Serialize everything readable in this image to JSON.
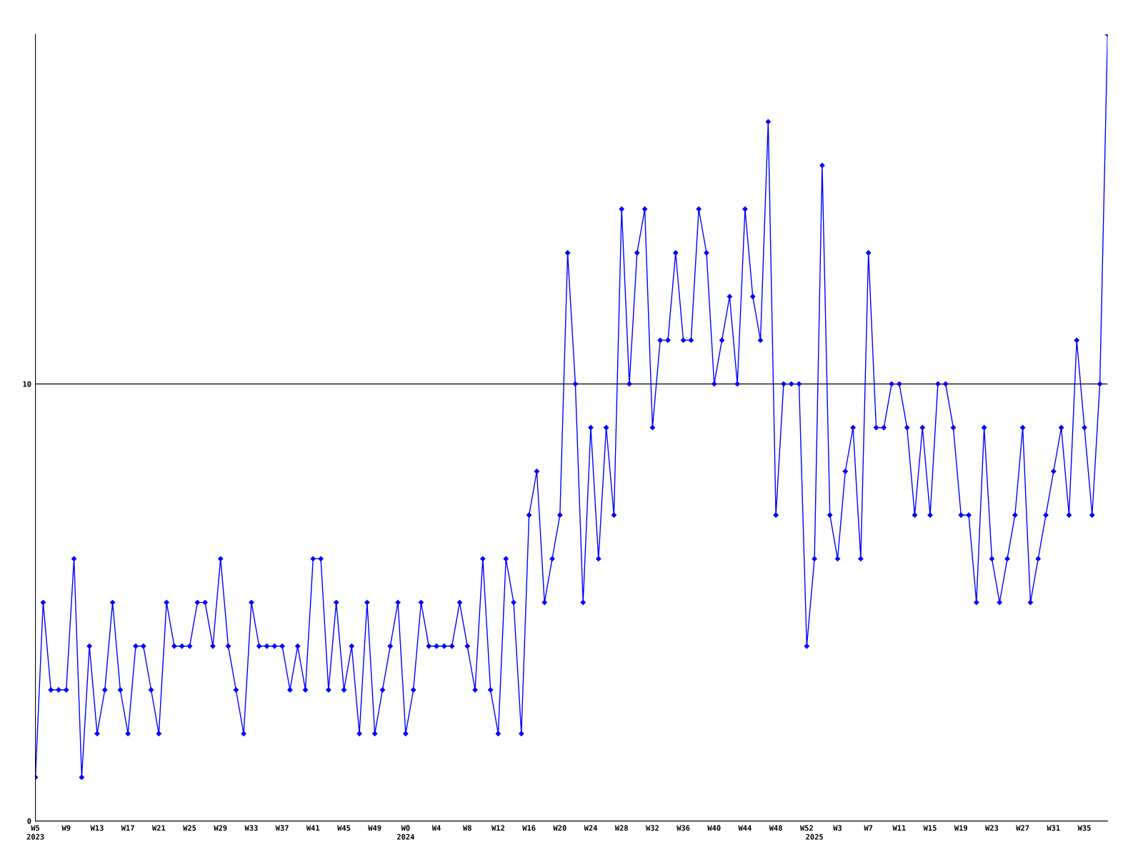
{
  "chart_data": {
    "type": "line",
    "categories": [
      "W5\n2023",
      null,
      null,
      null,
      "W9",
      null,
      null,
      null,
      "W13",
      null,
      null,
      null,
      "W17",
      null,
      null,
      null,
      "W21",
      null,
      null,
      null,
      "W25",
      null,
      null,
      null,
      "W29",
      null,
      null,
      null,
      "W33",
      null,
      null,
      null,
      "W37",
      null,
      null,
      null,
      "W41",
      null,
      null,
      null,
      "W45",
      null,
      null,
      null,
      "W49",
      null,
      null,
      null,
      "W0\n2024",
      null,
      null,
      null,
      "W4",
      null,
      null,
      null,
      "W8",
      null,
      null,
      null,
      "W12",
      null,
      null,
      null,
      "W16",
      null,
      null,
      null,
      "W20",
      null,
      null,
      null,
      "W24",
      null,
      null,
      null,
      "W28",
      null,
      null,
      null,
      "W32",
      null,
      null,
      null,
      "W36",
      null,
      null,
      null,
      "W40",
      null,
      null,
      null,
      "W44",
      null,
      null,
      null,
      "W48",
      null,
      null,
      null,
      "W52",
      "\n2025",
      null,
      null,
      "W3",
      null,
      null,
      null,
      "W7",
      null,
      null,
      null,
      "W11",
      null,
      null,
      null,
      "W15",
      null,
      null,
      null,
      "W19",
      null,
      null,
      null,
      "W23",
      null,
      null,
      null,
      "W27",
      null,
      null,
      null,
      "W31",
      null,
      null,
      null,
      "W35",
      null,
      null,
      null
    ],
    "series": [
      {
        "color": "#0000ff",
        "values": [
          1,
          5,
          3,
          3,
          3,
          6,
          1,
          4,
          2,
          3,
          5,
          3,
          2,
          4,
          4,
          3,
          2,
          5,
          4,
          4,
          4,
          5,
          5,
          4,
          6,
          4,
          3,
          2,
          5,
          4,
          4,
          4,
          4,
          3,
          4,
          3,
          6,
          6,
          3,
          5,
          3,
          4,
          2,
          5,
          2,
          3,
          4,
          5,
          2,
          3,
          5,
          4,
          4,
          4,
          4,
          5,
          4,
          3,
          6,
          3,
          2,
          6,
          5,
          2,
          7,
          8,
          5,
          6,
          7,
          13,
          10,
          5,
          9,
          6,
          9,
          7,
          14,
          10,
          13,
          14,
          9,
          11,
          11,
          13,
          11,
          11,
          14,
          13,
          10,
          11,
          12,
          10,
          14,
          12,
          11,
          16,
          7,
          10,
          10,
          10,
          4,
          6,
          15,
          7,
          6,
          8,
          9,
          6,
          13,
          9,
          9,
          10,
          10,
          9,
          7,
          9,
          7,
          10,
          10,
          9,
          7,
          7,
          5,
          9,
          6,
          5,
          6,
          7,
          9,
          5,
          6,
          7,
          8,
          9,
          7,
          11,
          9,
          7,
          10,
          18
        ]
      }
    ],
    "ylim": [
      0,
      18
    ],
    "yticks": [
      0,
      10
    ],
    "grid": "y",
    "marker": "diamond",
    "line_style": "solid"
  }
}
